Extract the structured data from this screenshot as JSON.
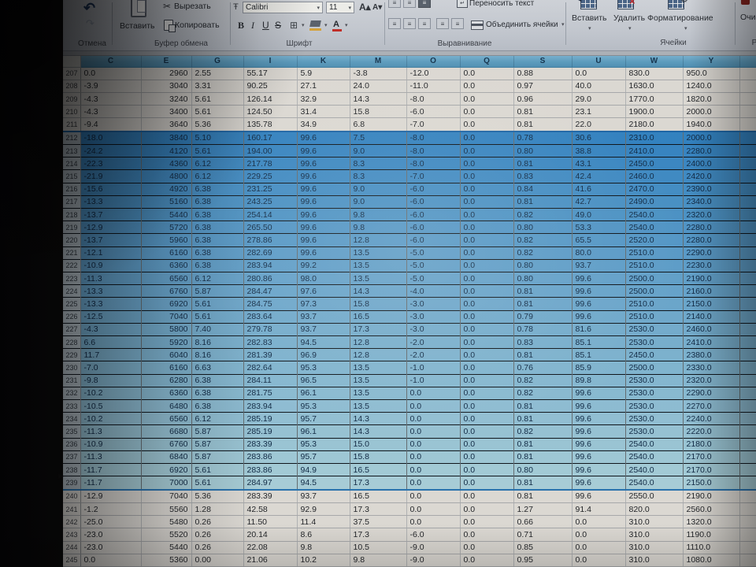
{
  "ribbon": {
    "undo": {
      "label": "Отмена"
    },
    "clipboard": {
      "paste": "Вставить",
      "cut": "Вырезать",
      "copy": "Копировать",
      "label": "Буфер обмена"
    },
    "font": {
      "name": "Calibri",
      "size": "11",
      "bold": "B",
      "italic": "I",
      "underline": "U",
      "strike": "S",
      "label": "Шрифт"
    },
    "alignment": {
      "wrap": "Переносить текст",
      "merge": "Объединить ячейки",
      "label": "Выравнивание"
    },
    "cells": {
      "insert": "Вставить",
      "delete": "Удалить",
      "format": "Форматирование",
      "label": "Ячейки"
    },
    "editing": {
      "clear_partial": "Очи",
      "label_partial": "Р"
    }
  },
  "sheet": {
    "columns": [
      "C",
      "E",
      "G",
      "I",
      "K",
      "M",
      "O",
      "Q",
      "S",
      "U",
      "W",
      "Y"
    ],
    "selection": {
      "first_row": 212,
      "last_row": 239,
      "color_top": "#2f83c6",
      "color_bottom": "#a9d2de"
    },
    "header_color": "#5c9fc4",
    "rows": [
      {
        "n": 207,
        "sel": false,
        "v": [
          "0.0",
          "2960",
          "2.55",
          "55.17",
          "5.9",
          "-3.8",
          "-12.0",
          "0.0",
          "0.88",
          "0.0",
          "830.0",
          "950.0"
        ]
      },
      {
        "n": 208,
        "sel": false,
        "v": [
          "-3.9",
          "3040",
          "3.31",
          "90.25",
          "27.1",
          "24.0",
          "-11.0",
          "0.0",
          "0.97",
          "40.0",
          "1630.0",
          "1240.0"
        ]
      },
      {
        "n": 209,
        "sel": false,
        "v": [
          "-4.3",
          "3240",
          "5.61",
          "126.14",
          "32.9",
          "14.3",
          "-8.0",
          "0.0",
          "0.96",
          "29.0",
          "1770.0",
          "1820.0"
        ]
      },
      {
        "n": 210,
        "sel": false,
        "v": [
          "-4.3",
          "3400",
          "5.61",
          "124.50",
          "31.4",
          "15.8",
          "-6.0",
          "0.0",
          "0.81",
          "23.1",
          "1900.0",
          "2000.0"
        ]
      },
      {
        "n": 211,
        "sel": false,
        "v": [
          "-9.4",
          "3640",
          "5.36",
          "135.78",
          "34.9",
          "6.8",
          "-7.0",
          "0.0",
          "0.81",
          "22.0",
          "2180.0",
          "1940.0"
        ]
      },
      {
        "n": 212,
        "sel": true,
        "v": [
          "-18.0",
          "3840",
          "5.10",
          "160.17",
          "99.6",
          "7.5",
          "-8.0",
          "0.0",
          "0.78",
          "30.6",
          "2310.0",
          "2000.0"
        ]
      },
      {
        "n": 213,
        "sel": true,
        "v": [
          "-24.2",
          "4120",
          "5.61",
          "194.00",
          "99.6",
          "9.0",
          "-8.0",
          "0.0",
          "0.80",
          "38.8",
          "2410.0",
          "2280.0"
        ]
      },
      {
        "n": 214,
        "sel": true,
        "v": [
          "-22.3",
          "4360",
          "6.12",
          "217.78",
          "99.6",
          "8.3",
          "-8.0",
          "0.0",
          "0.81",
          "43.1",
          "2450.0",
          "2400.0"
        ]
      },
      {
        "n": 215,
        "sel": true,
        "v": [
          "-21.9",
          "4800",
          "6.12",
          "229.25",
          "99.6",
          "8.3",
          "-7.0",
          "0.0",
          "0.83",
          "42.4",
          "2460.0",
          "2420.0"
        ]
      },
      {
        "n": 216,
        "sel": true,
        "v": [
          "-15.6",
          "4920",
          "6.38",
          "231.25",
          "99.6",
          "9.0",
          "-6.0",
          "0.0",
          "0.84",
          "41.6",
          "2470.0",
          "2390.0"
        ]
      },
      {
        "n": 217,
        "sel": true,
        "v": [
          "-13.3",
          "5160",
          "6.38",
          "243.25",
          "99.6",
          "9.0",
          "-6.0",
          "0.0",
          "0.81",
          "42.7",
          "2490.0",
          "2340.0"
        ]
      },
      {
        "n": 218,
        "sel": true,
        "v": [
          "-13.7",
          "5440",
          "6.38",
          "254.14",
          "99.6",
          "9.8",
          "-6.0",
          "0.0",
          "0.82",
          "49.0",
          "2540.0",
          "2320.0"
        ]
      },
      {
        "n": 219,
        "sel": true,
        "v": [
          "-12.9",
          "5720",
          "6.38",
          "265.50",
          "99.6",
          "9.8",
          "-6.0",
          "0.0",
          "0.80",
          "53.3",
          "2540.0",
          "2280.0"
        ]
      },
      {
        "n": 220,
        "sel": true,
        "v": [
          "-13.7",
          "5960",
          "6.38",
          "278.86",
          "99.6",
          "12.8",
          "-6.0",
          "0.0",
          "0.82",
          "65.5",
          "2520.0",
          "2280.0"
        ]
      },
      {
        "n": 221,
        "sel": true,
        "v": [
          "-12.1",
          "6160",
          "6.38",
          "282.69",
          "99.6",
          "13.5",
          "-5.0",
          "0.0",
          "0.82",
          "80.0",
          "2510.0",
          "2290.0"
        ]
      },
      {
        "n": 222,
        "sel": true,
        "v": [
          "-10.9",
          "6360",
          "6.38",
          "283.94",
          "99.2",
          "13.5",
          "-5.0",
          "0.0",
          "0.80",
          "93.7",
          "2510.0",
          "2230.0"
        ]
      },
      {
        "n": 223,
        "sel": true,
        "v": [
          "-11.3",
          "6560",
          "6.12",
          "280.86",
          "98.0",
          "13.5",
          "-5.0",
          "0.0",
          "0.80",
          "99.6",
          "2500.0",
          "2190.0"
        ]
      },
      {
        "n": 224,
        "sel": true,
        "v": [
          "-13.3",
          "6760",
          "5.87",
          "284.47",
          "97.6",
          "14.3",
          "-4.0",
          "0.0",
          "0.81",
          "99.6",
          "2500.0",
          "2160.0"
        ]
      },
      {
        "n": 225,
        "sel": true,
        "v": [
          "-13.3",
          "6920",
          "5.61",
          "284.75",
          "97.3",
          "15.8",
          "-3.0",
          "0.0",
          "0.81",
          "99.6",
          "2510.0",
          "2150.0"
        ]
      },
      {
        "n": 226,
        "sel": true,
        "v": [
          "-12.5",
          "7040",
          "5.61",
          "283.64",
          "93.7",
          "16.5",
          "-3.0",
          "0.0",
          "0.79",
          "99.6",
          "2510.0",
          "2140.0"
        ]
      },
      {
        "n": 227,
        "sel": true,
        "v": [
          "-4.3",
          "5800",
          "7.40",
          "279.78",
          "93.7",
          "17.3",
          "-3.0",
          "0.0",
          "0.78",
          "81.6",
          "2530.0",
          "2460.0"
        ]
      },
      {
        "n": 228,
        "sel": true,
        "v": [
          "6.6",
          "5920",
          "8.16",
          "282.83",
          "94.5",
          "12.8",
          "-2.0",
          "0.0",
          "0.83",
          "85.1",
          "2530.0",
          "2410.0"
        ]
      },
      {
        "n": 229,
        "sel": true,
        "v": [
          "11.7",
          "6040",
          "8.16",
          "281.39",
          "96.9",
          "12.8",
          "-2.0",
          "0.0",
          "0.81",
          "85.1",
          "2450.0",
          "2380.0"
        ]
      },
      {
        "n": 230,
        "sel": true,
        "v": [
          "-7.0",
          "6160",
          "6.63",
          "282.64",
          "95.3",
          "13.5",
          "-1.0",
          "0.0",
          "0.76",
          "85.9",
          "2500.0",
          "2330.0"
        ]
      },
      {
        "n": 231,
        "sel": true,
        "v": [
          "-9.8",
          "6280",
          "6.38",
          "284.11",
          "96.5",
          "13.5",
          "-1.0",
          "0.0",
          "0.82",
          "89.8",
          "2530.0",
          "2320.0"
        ]
      },
      {
        "n": 232,
        "sel": true,
        "v": [
          "-10.2",
          "6360",
          "6.38",
          "281.75",
          "96.1",
          "13.5",
          "0.0",
          "0.0",
          "0.82",
          "99.6",
          "2530.0",
          "2290.0"
        ]
      },
      {
        "n": 233,
        "sel": true,
        "v": [
          "-10.5",
          "6480",
          "6.38",
          "283.94",
          "95.3",
          "13.5",
          "0.0",
          "0.0",
          "0.81",
          "99.6",
          "2530.0",
          "2270.0"
        ]
      },
      {
        "n": 234,
        "sel": true,
        "v": [
          "-10.2",
          "6560",
          "6.12",
          "285.19",
          "95.7",
          "14.3",
          "0.0",
          "0.0",
          "0.81",
          "99.6",
          "2530.0",
          "2240.0"
        ]
      },
      {
        "n": 235,
        "sel": true,
        "v": [
          "-11.3",
          "6680",
          "5.87",
          "285.19",
          "96.1",
          "14.3",
          "0.0",
          "0.0",
          "0.82",
          "99.6",
          "2530.0",
          "2220.0"
        ]
      },
      {
        "n": 236,
        "sel": true,
        "v": [
          "-10.9",
          "6760",
          "5.87",
          "283.39",
          "95.3",
          "15.0",
          "0.0",
          "0.0",
          "0.81",
          "99.6",
          "2540.0",
          "2180.0"
        ]
      },
      {
        "n": 237,
        "sel": true,
        "v": [
          "-11.3",
          "6840",
          "5.87",
          "283.86",
          "95.7",
          "15.8",
          "0.0",
          "0.0",
          "0.81",
          "99.6",
          "2540.0",
          "2170.0"
        ]
      },
      {
        "n": 238,
        "sel": true,
        "v": [
          "-11.7",
          "6920",
          "5.61",
          "283.86",
          "94.9",
          "16.5",
          "0.0",
          "0.0",
          "0.80",
          "99.6",
          "2540.0",
          "2170.0"
        ]
      },
      {
        "n": 239,
        "sel": true,
        "v": [
          "-11.7",
          "7000",
          "5.61",
          "284.97",
          "94.5",
          "17.3",
          "0.0",
          "0.0",
          "0.81",
          "99.6",
          "2540.0",
          "2150.0"
        ]
      },
      {
        "n": 240,
        "sel": false,
        "v": [
          "-12.9",
          "7040",
          "5.36",
          "283.39",
          "93.7",
          "16.5",
          "0.0",
          "0.0",
          "0.81",
          "99.6",
          "2550.0",
          "2190.0"
        ]
      },
      {
        "n": 241,
        "sel": false,
        "v": [
          "-1.2",
          "5560",
          "1.28",
          "42.58",
          "92.9",
          "17.3",
          "0.0",
          "0.0",
          "1.27",
          "91.4",
          "820.0",
          "2560.0"
        ]
      },
      {
        "n": 242,
        "sel": false,
        "v": [
          "-25.0",
          "5480",
          "0.26",
          "11.50",
          "11.4",
          "37.5",
          "0.0",
          "0.0",
          "0.66",
          "0.0",
          "310.0",
          "1320.0"
        ]
      },
      {
        "n": 243,
        "sel": false,
        "v": [
          "-23.0",
          "5520",
          "0.26",
          "20.14",
          "8.6",
          "17.3",
          "-6.0",
          "0.0",
          "0.71",
          "0.0",
          "310.0",
          "1190.0"
        ]
      },
      {
        "n": 244,
        "sel": false,
        "v": [
          "-23.0",
          "5440",
          "0.26",
          "22.08",
          "9.8",
          "10.5",
          "-9.0",
          "0.0",
          "0.85",
          "0.0",
          "310.0",
          "1110.0"
        ]
      },
      {
        "n": 245,
        "sel": false,
        "v": [
          "0.0",
          "5360",
          "0.00",
          "21.06",
          "10.2",
          "9.8",
          "-9.0",
          "0.0",
          "0.95",
          "0.0",
          "310.0",
          "1080.0"
        ]
      }
    ]
  }
}
